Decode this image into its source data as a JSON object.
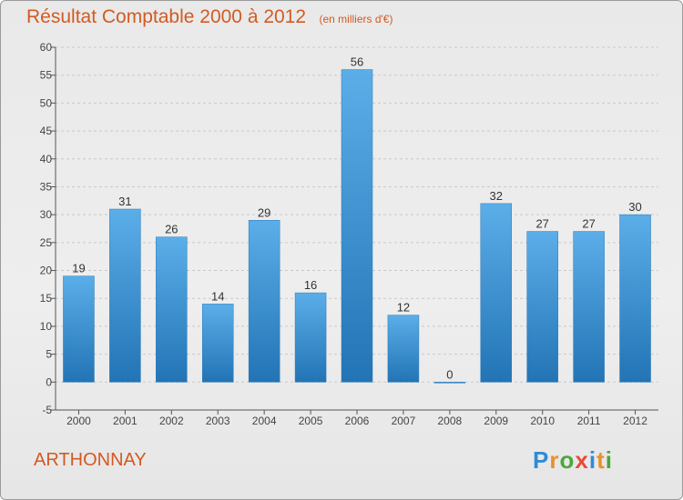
{
  "chart_data": {
    "type": "bar",
    "title": "Résultat Comptable 2000 à 2012",
    "subtitle": "(en milliers d'€)",
    "categories": [
      "2000",
      "2001",
      "2002",
      "2003",
      "2004",
      "2005",
      "2006",
      "2007",
      "2008",
      "2009",
      "2010",
      "2011",
      "2012"
    ],
    "values": [
      19,
      31,
      26,
      14,
      29,
      16,
      56,
      12,
      0,
      32,
      27,
      27,
      30
    ],
    "ylim": [
      -5,
      60
    ],
    "yticks": [
      -5,
      0,
      5,
      10,
      15,
      20,
      25,
      30,
      35,
      40,
      45,
      50,
      55,
      60
    ],
    "grid": true,
    "xlabel": "",
    "ylabel": "",
    "bar_color_top": "#5baee8",
    "bar_color_bottom": "#2274b5"
  },
  "commune": "ARTHONNAY",
  "logo": {
    "letters": [
      "P",
      "r",
      "o",
      "x",
      "i",
      "t",
      "i"
    ],
    "colors": [
      "#2f8bd6",
      "#e8912a",
      "#4aa83c",
      "#e84a3a",
      "#2f8bd6",
      "#e8912a",
      "#4aa83c"
    ]
  },
  "colors": {
    "accent": "#d35a22",
    "grid": "#c9c9c9",
    "axis": "#555555"
  }
}
